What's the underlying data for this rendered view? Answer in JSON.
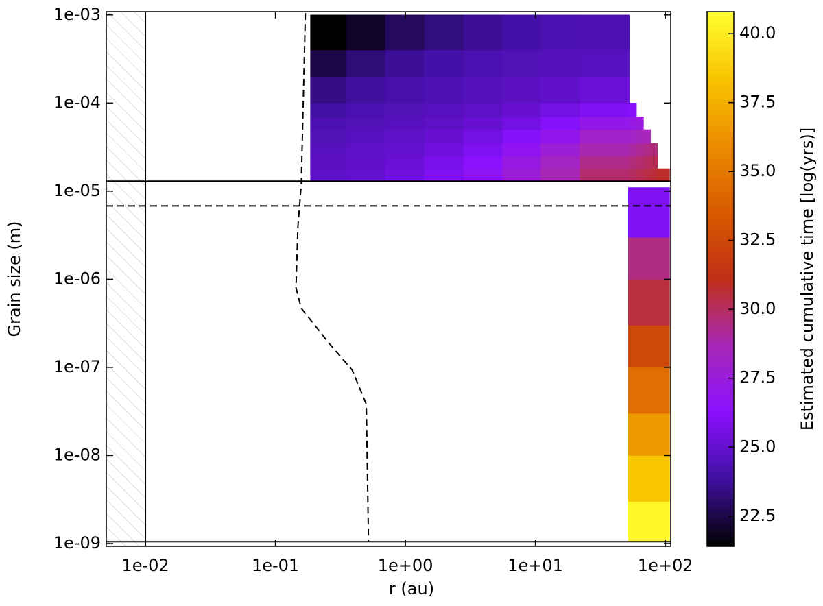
{
  "chart_data": {
    "type": "heatmap",
    "xlabel": "r (au)",
    "ylabel": "Grain size (m)",
    "xscale": "log",
    "yscale": "log",
    "xlim": [
      0.005,
      110
    ],
    "ylim": [
      9.3e-10,
      0.00109
    ],
    "xticks": [
      {
        "value": 0.01,
        "label": "1e-02"
      },
      {
        "value": 0.1,
        "label": "1e-01"
      },
      {
        "value": 1,
        "label": "1e+00"
      },
      {
        "value": 10,
        "label": "1e+01"
      },
      {
        "value": 100,
        "label": "1e+02"
      }
    ],
    "yticks": [
      {
        "value": 1e-09,
        "label": "1e-09"
      },
      {
        "value": 1e-08,
        "label": "1e-08"
      },
      {
        "value": 1e-07,
        "label": "1e-07"
      },
      {
        "value": 1e-06,
        "label": "1e-06"
      },
      {
        "value": 1e-05,
        "label": "1e-05"
      },
      {
        "value": 0.0001,
        "label": "1e-04"
      },
      {
        "value": 0.001,
        "label": "1e-03"
      }
    ],
    "colorbar": {
      "label": "Estimated cumulative time [log(yrs)]",
      "clim": [
        21.4,
        40.8
      ],
      "ticks": [
        22.5,
        {
          "value": 25,
          "label": "25.0"
        },
        27.5,
        {
          "value": 30,
          "label": "30.0"
        },
        32.5,
        {
          "value": 35,
          "label": "35.0"
        },
        37.5,
        {
          "value": 40,
          "label": "40.0"
        }
      ],
      "colormap": [
        "#000000",
        "#4010a0",
        "#8a10ff",
        "#a828b8",
        "#c03018",
        "#d85a00",
        "#ec8c00",
        "#f8c400",
        "#ffff30"
      ]
    },
    "heatmaps": [
      {
        "x_edges": [
          0.186,
          0.35,
          0.7,
          1.4,
          2.8,
          5.6,
          11,
          22,
          53,
          60,
          68,
          77,
          87,
          108
        ],
        "y_edges": [
          1.3e-05,
          1.8e-05,
          2.5e-05,
          3.5e-05,
          5e-05,
          7e-05,
          0.0001,
          0.0002,
          0.0004,
          0.001
        ],
        "values": [
          [
            24.8,
            25.0,
            25.4,
            25.9,
            26.6,
            27.6,
            28.7,
            29.8,
            30.0,
            30.2,
            30.4,
            30.6,
            30.8
          ],
          [
            24.7,
            24.9,
            25.2,
            25.7,
            26.3,
            27.2,
            28.3,
            29.4,
            29.6,
            29.8,
            30.0,
            30.2,
            null
          ],
          [
            24.6,
            24.8,
            25.0,
            25.4,
            25.9,
            26.7,
            27.7,
            28.8,
            29.0,
            29.2,
            29.4,
            29.6,
            null
          ],
          [
            24.4,
            24.6,
            24.8,
            25.1,
            25.5,
            26.1,
            26.9,
            28.0,
            28.2,
            28.4,
            28.6,
            null,
            null
          ],
          [
            24.2,
            24.4,
            24.6,
            24.8,
            25.1,
            25.5,
            26.1,
            27.0,
            27.2,
            27.4,
            null,
            null,
            null
          ],
          [
            23.9,
            24.2,
            24.4,
            24.6,
            24.8,
            25.1,
            25.5,
            26.0,
            26.2,
            null,
            null,
            null,
            null
          ],
          [
            23.4,
            23.8,
            24.1,
            24.3,
            24.5,
            24.7,
            24.9,
            25.2,
            null,
            null,
            null,
            null,
            null
          ],
          [
            22.5,
            23.2,
            23.7,
            24.0,
            24.2,
            24.4,
            24.5,
            24.6,
            null,
            null,
            null,
            null,
            null
          ],
          [
            21.0,
            22.0,
            22.8,
            23.3,
            23.7,
            24.0,
            24.2,
            24.3,
            null,
            null,
            null,
            null,
            null
          ]
        ]
      },
      {
        "x_edges": [
          52,
          108
        ],
        "y_edges": [
          1.05e-09,
          3e-09,
          1e-08,
          3e-08,
          1e-07,
          3e-07,
          1e-06,
          3e-06,
          1.1e-05
        ],
        "values": [
          [
            40.5
          ],
          [
            38.5
          ],
          [
            36.5
          ],
          [
            34.5
          ],
          [
            32.5
          ],
          [
            30.5
          ],
          [
            29.5
          ],
          [
            26.0
          ]
        ]
      }
    ],
    "curve": {
      "x": [
        0.17,
        0.158,
        0.149,
        0.144,
        0.158,
        0.257,
        0.39,
        0.5,
        0.52
      ],
      "y": [
        0.00105,
        1.17e-05,
        4e-06,
        8e-07,
        4.7e-07,
        1.9e-07,
        9.3e-08,
        3.8e-08,
        1.05e-09
      ],
      "style": "dashed",
      "color": "#000000"
    },
    "vlines": [
      {
        "x": 0.01,
        "style": "solid"
      }
    ],
    "hlines": [
      {
        "y": 1.3e-05,
        "style": "solid"
      },
      {
        "y": 6.8e-06,
        "style": "dashed"
      },
      {
        "y": 1.05e-09,
        "style": "solid"
      }
    ],
    "hatch": {
      "x": [
        0.005,
        0.01
      ]
    }
  }
}
